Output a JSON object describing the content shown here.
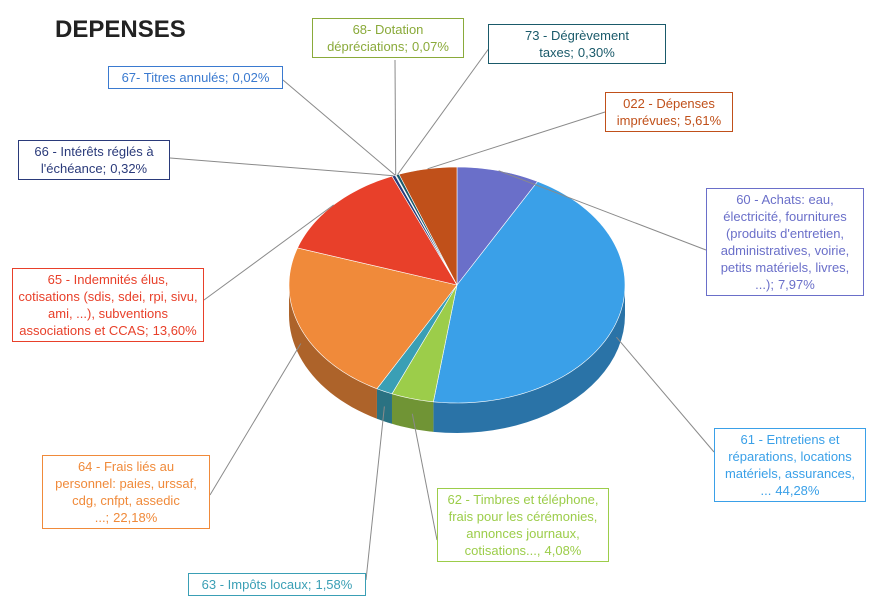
{
  "chart_data": {
    "type": "pie",
    "title": "DEPENSES",
    "categories": [
      "60 - Achats: eau, électricité, fournitures (produits d'entretien, administratives, voirie, petits matériels, livres, ...);",
      "61 - Entretiens et réparations, locations matériels, assurances, ...",
      "62 - Timbres et téléphone, frais pour les cérémonies, annonces journaux, cotisations...,",
      "63 - Impôts locaux;",
      "64 - Frais liés au personnel: paies, urssaf, cdg, cnfpt, assedic ...;",
      "65 - Indemnités élus, cotisations (sdis, sdei, rpi, sivu, ami, ...), subventions associations et CCAS;",
      "66 - Intérêts réglés à l'échéance;",
      "67- Titres annulés;",
      "68- Dotation dépréciations;",
      "73 - Dégrèvement taxes;",
      "022 - Dépenses imprévues;"
    ],
    "values": [
      7.97,
      44.28,
      4.08,
      1.58,
      22.18,
      13.6,
      0.32,
      0.02,
      0.07,
      0.3,
      5.61
    ],
    "value_labels": [
      "7,97%",
      "44,28%",
      "4,08%",
      "1,58%",
      "22,18%",
      "13,60%",
      "0,32%",
      "0,02%",
      "0,07%",
      "0,30%",
      "5,61%"
    ],
    "colors": [
      "#6a6fc9",
      "#3aa0e8",
      "#9ccd4a",
      "#3a9fb5",
      "#f08a3a",
      "#e8402a",
      "#2a3a7a",
      "#3a7ad0",
      "#8aaa3a",
      "#1a5a6a",
      "#c0501a"
    ]
  }
}
